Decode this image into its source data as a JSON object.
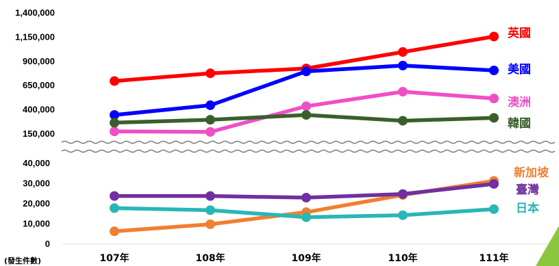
{
  "chart_data": {
    "type": "line",
    "categories": [
      "107年",
      "108年",
      "109年",
      "110年",
      "111年"
    ],
    "ylabel": "(發生件數)",
    "axis_break": true,
    "upper_axis": {
      "ticks": [
        "150,000",
        "400,000",
        "650,000",
        "900,000",
        "1,150,000",
        "1,400,000"
      ],
      "tick_values": [
        150000,
        400000,
        650000,
        900000,
        1150000,
        1400000
      ]
    },
    "lower_axis": {
      "ticks": [
        "0",
        "10,000",
        "20,000",
        "30,000",
        "40,000"
      ],
      "tick_values": [
        0,
        10000,
        20000,
        30000,
        40000
      ]
    },
    "series": [
      {
        "name": "英國",
        "color": "#ff0000",
        "axis": "upper",
        "values": [
          690000,
          770000,
          820000,
          990000,
          1150000
        ]
      },
      {
        "name": "美國",
        "color": "#0000ff",
        "axis": "upper",
        "values": [
          340000,
          440000,
          790000,
          850000,
          800000
        ]
      },
      {
        "name": "澳洲",
        "color": "#ef4fc6",
        "axis": "upper",
        "values": [
          170000,
          165000,
          430000,
          580000,
          510000
        ]
      },
      {
        "name": "韓國",
        "color": "#3a5f2b",
        "axis": "upper",
        "values": [
          260000,
          290000,
          340000,
          280000,
          310000
        ]
      },
      {
        "name": "新加坡",
        "color": "#f07f30",
        "axis": "lower",
        "values": [
          6000,
          9500,
          15500,
          24000,
          31000
        ]
      },
      {
        "name": "臺灣",
        "color": "#7030a0",
        "axis": "lower",
        "values": [
          23500,
          23500,
          22700,
          24500,
          29500
        ]
      },
      {
        "name": "日本",
        "color": "#29b6b6",
        "axis": "lower",
        "values": [
          17500,
          16500,
          13000,
          14000,
          17000
        ]
      }
    ]
  }
}
